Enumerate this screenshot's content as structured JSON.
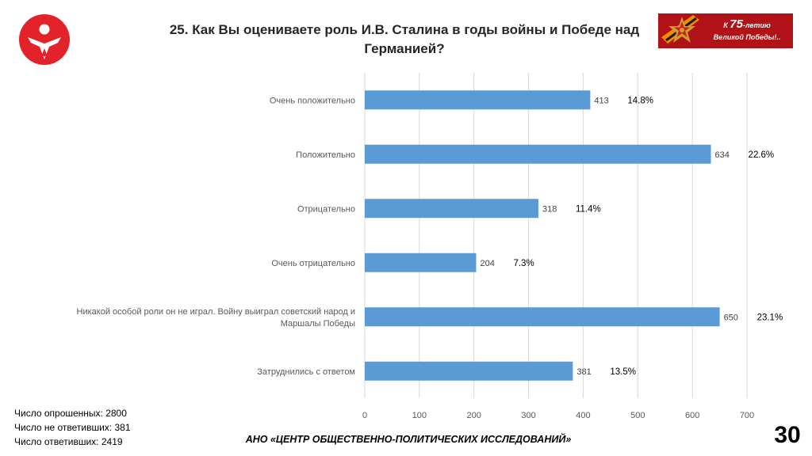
{
  "title": "25. Как Вы оцениваете роль И.В. Сталина в годы войны и Победе над Германией?",
  "badge": {
    "line1_prefix": "К ",
    "line1_number": "75",
    "line1_suffix": "-летию",
    "line2": "Великой Победы!.."
  },
  "stats": {
    "surveyed": "Число опрошенных: 2800",
    "not_answered": "Число не ответивших: 381",
    "answered": "Число ответивших: 2419"
  },
  "footer": "АНО «ЦЕНТР ОБЩЕСТВЕННО-ПОЛИТИЧЕСКИХ ИССЛЕДОВАНИЙ»",
  "page_number": "30",
  "colors": {
    "bar": "#5b9bd5",
    "logo": "#e4222a",
    "badge": "#b01217",
    "grid": "#d9d9d9"
  },
  "chart_data": {
    "type": "bar",
    "orientation": "horizontal",
    "categories": [
      [
        "Очень положительно"
      ],
      [
        "Положительно"
      ],
      [
        "Отрицательно"
      ],
      [
        "Очень отрицательно"
      ],
      [
        "Никакой особой роли он не играл. Войну выиграл советский народ и",
        "Маршалы Победы"
      ],
      [
        "Затруднились с ответом"
      ]
    ],
    "values": [
      413,
      634,
      318,
      204,
      650,
      381
    ],
    "percent_labels": [
      "14.8%",
      "22.6%",
      "11.4%",
      "7.3%",
      "23.1%",
      "13.5%"
    ],
    "xlim": [
      0,
      700
    ],
    "xticks": [
      0,
      100,
      200,
      300,
      400,
      500,
      600,
      700
    ],
    "grid": true,
    "legend": "none"
  }
}
